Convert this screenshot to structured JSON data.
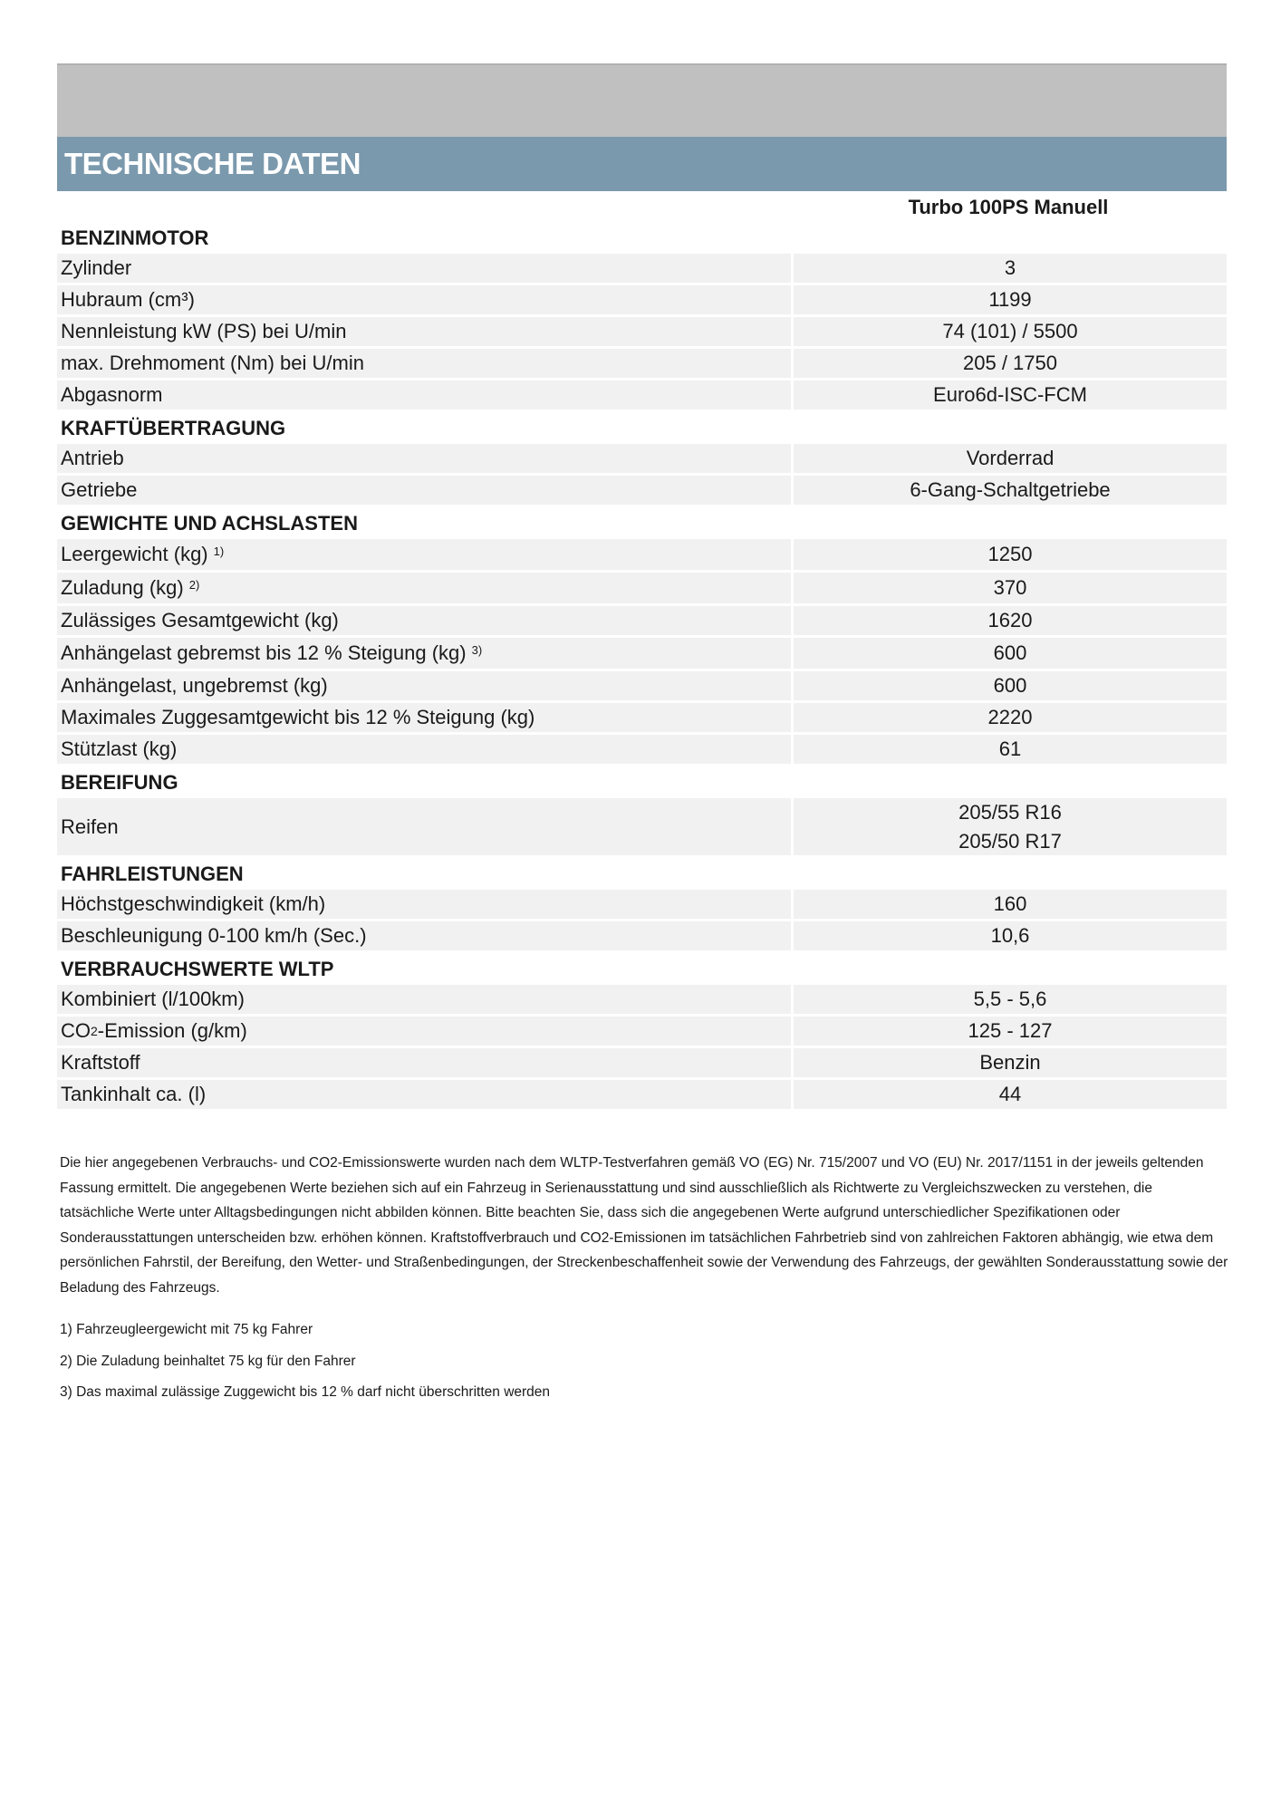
{
  "title": "TECHNISCHE DATEN",
  "column_header": "Turbo 100PS Manuell",
  "sections": [
    {
      "title": "BENZINMOTOR",
      "rows": [
        {
          "label": "Zylinder",
          "values": [
            "3"
          ]
        },
        {
          "label": "Hubraum (cm³)",
          "values": [
            "1199"
          ]
        },
        {
          "label": "Nennleistung kW (PS) bei U/min",
          "values": [
            "74 (101) / 5500"
          ]
        },
        {
          "label": "max. Drehmoment (Nm) bei U/min",
          "values": [
            "205 / 1750"
          ]
        },
        {
          "label": "Abgasnorm",
          "values": [
            "Euro6d-ISC-FCM"
          ]
        }
      ]
    },
    {
      "title": "KRAFTÜBERTRAGUNG",
      "rows": [
        {
          "label": "Antrieb",
          "values": [
            "Vorderrad"
          ]
        },
        {
          "label": "Getriebe",
          "values": [
            "6-Gang-Schaltgetriebe"
          ]
        }
      ]
    },
    {
      "title": "GEWICHTE UND ACHSLASTEN",
      "rows": [
        {
          "label": "Leergewicht (kg)",
          "sup": "1)",
          "values": [
            "1250"
          ]
        },
        {
          "label": "Zuladung (kg)",
          "sup": "2)",
          "values": [
            "370"
          ]
        },
        {
          "label": "Zulässiges Gesamtgewicht (kg)",
          "values": [
            "1620"
          ]
        },
        {
          "label": "Anhängelast gebremst bis 12 % Steigung (kg)",
          "sup": "3)",
          "values": [
            "600"
          ]
        },
        {
          "label": "Anhängelast, ungebremst (kg)",
          "values": [
            "600"
          ]
        },
        {
          "label": "Maximales Zuggesamtgewicht bis 12 % Steigung (kg)",
          "values": [
            "2220"
          ]
        },
        {
          "label": "Stützlast (kg)",
          "values": [
            "61"
          ]
        }
      ]
    },
    {
      "title": "BEREIFUNG",
      "rows": [
        {
          "label": "Reifen",
          "values": [
            "205/55 R16",
            "205/50 R17"
          ]
        }
      ]
    },
    {
      "title": "FAHRLEISTUNGEN",
      "rows": [
        {
          "label": "Höchstgeschwindigkeit (km/h)",
          "values": [
            "160"
          ]
        },
        {
          "label": "Beschleunigung 0-100 km/h (Sec.)",
          "values": [
            "10,6"
          ]
        }
      ]
    },
    {
      "title": "VERBRAUCHSWERTE WLTP",
      "rows": [
        {
          "label": "Kombiniert (l/100km)",
          "values": [
            "5,5 - 5,6"
          ]
        },
        {
          "label": "CO",
          "sub": "2",
          "label_rest": "-Emission (g/km)",
          "values": [
            "125 - 127"
          ]
        },
        {
          "label": "Kraftstoff",
          "values": [
            "Benzin"
          ]
        },
        {
          "label": "Tankinhalt ca. (l)",
          "values": [
            "44"
          ]
        }
      ]
    }
  ],
  "disclaimer": "Die hier angegebenen Verbrauchs- und CO2-Emissionswerte wurden nach dem WLTP-Testverfahren gemäß VO (EG) Nr. 715/2007 und VO (EU) Nr. 2017/1151 in der jeweils geltenden Fassung ermittelt. Die angegebenen Werte beziehen sich auf ein Fahrzeug in Serienausstattung und sind ausschließlich als Richtwerte zu Vergleichszwecken zu verstehen, die tatsächliche Werte unter Alltagsbedingungen nicht abbilden können. Bitte beachten Sie, dass sich die angegebenen Werte aufgrund unterschiedlicher Spezifikationen oder Sonderausstattungen unterscheiden bzw. erhöhen können. Kraftstoffverbrauch und CO2-Emissionen im tatsächlichen Fahrbetrieb sind von zahlreichen Faktoren abhängig, wie etwa dem persönlichen Fahrstil, der Bereifung, den Wetter- und Straßenbedingungen, der Streckenbeschaffenheit sowie der Verwendung des Fahrzeugs, der gewählten Sonderausstattung sowie der Beladung des Fahrzeugs.",
  "footnotes": [
    "1) Fahrzeugleergewicht mit 75 kg Fahrer",
    "2) Die Zuladung beinhaltet 75 kg für den Fahrer",
    "3) Das maximal zulässige Zuggewicht bis 12 % darf nicht überschritten werden"
  ]
}
